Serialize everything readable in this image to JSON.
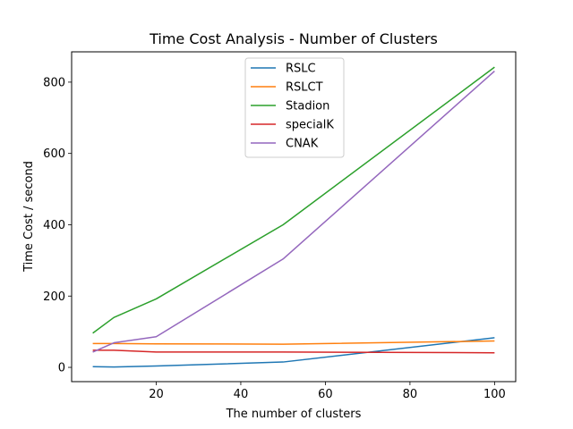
{
  "chart_data": {
    "type": "line",
    "title": "Time Cost Analysis - Number of Clusters",
    "xlabel": "The number of clusters",
    "ylabel": "Time Cost / second",
    "xlim": [
      0,
      105
    ],
    "ylim": [
      -40,
      885
    ],
    "xticks": [
      20,
      40,
      60,
      80,
      100
    ],
    "yticks": [
      0,
      200,
      400,
      600,
      800
    ],
    "grid": false,
    "legend_position": "top-center",
    "x": [
      5,
      10,
      20,
      50,
      100
    ],
    "series": [
      {
        "name": "RSLC",
        "color": "#1f77b4",
        "values": [
          2,
          1,
          4,
          15,
          83
        ]
      },
      {
        "name": "RSLCT",
        "color": "#ff7f0e",
        "values": [
          67,
          67,
          66,
          65,
          74
        ]
      },
      {
        "name": "Stadion",
        "color": "#2ca02c",
        "values": [
          96,
          140,
          192,
          400,
          842
        ]
      },
      {
        "name": "specialK",
        "color": "#d62728",
        "values": [
          48,
          48,
          43,
          43,
          41
        ]
      },
      {
        "name": "CNAK",
        "color": "#9467bd",
        "values": [
          43,
          69,
          86,
          304,
          831
        ]
      }
    ]
  }
}
